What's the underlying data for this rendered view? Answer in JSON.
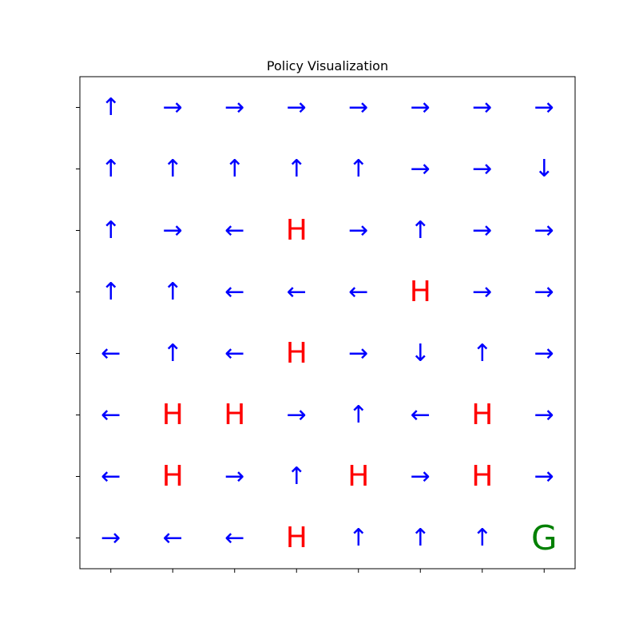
{
  "chart_data": {
    "type": "table",
    "title": "Policy Visualization",
    "grid_size": 8,
    "grid": false,
    "x_ticks": 8,
    "y_ticks": 8,
    "cells": [
      [
        "↑",
        "→",
        "→",
        "→",
        "→",
        "→",
        "→",
        "→"
      ],
      [
        "↑",
        "↑",
        "↑",
        "↑",
        "↑",
        "→",
        "→",
        "↓"
      ],
      [
        "↑",
        "→",
        "←",
        "H",
        "→",
        "↑",
        "→",
        "→"
      ],
      [
        "↑",
        "↑",
        "←",
        "←",
        "←",
        "H",
        "→",
        "→"
      ],
      [
        "←",
        "↑",
        "←",
        "H",
        "→",
        "↓",
        "↑",
        "→"
      ],
      [
        "←",
        "H",
        "H",
        "→",
        "↑",
        "←",
        "H",
        "→"
      ],
      [
        "←",
        "H",
        "→",
        "↑",
        "H",
        "→",
        "H",
        "→"
      ],
      [
        "→",
        "←",
        "←",
        "H",
        "↑",
        "↑",
        "↑",
        "G"
      ]
    ],
    "colors": {
      "arrow": "#0000ff",
      "hole": "#ff0000",
      "goal": "#008000",
      "axes": "#000000"
    }
  }
}
